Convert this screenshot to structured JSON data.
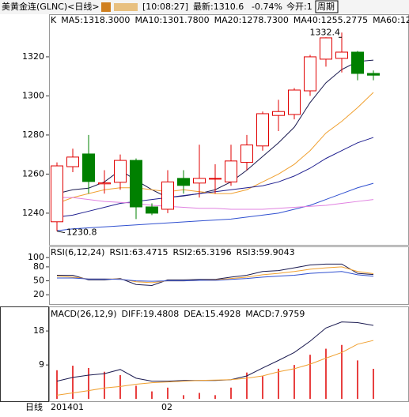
{
  "header": {
    "title": "美黄金连(GLNC)<日线>",
    "time": "[10:08:27]",
    "latest": "最新:1310.6",
    "change": "-0.74%",
    "open": "今开:1",
    "period": "周期",
    "footer": "日线"
  },
  "chart_data": [
    {
      "type": "candlestick",
      "label": "K",
      "categories": [
        "201401",
        null,
        null,
        null,
        null,
        null,
        null,
        "02",
        null,
        null,
        null,
        null,
        null,
        null,
        null,
        null,
        null,
        null,
        null,
        null,
        null
      ],
      "up_color": "#e00000",
      "down_color": "#008000",
      "candles": [
        {
          "open": 1235.6,
          "close": 1264.2,
          "high": 1266,
          "low": 1230.8
        },
        {
          "open": 1263.8,
          "close": 1268.7,
          "high": 1273,
          "low": 1261
        },
        {
          "open": 1270.3,
          "close": 1256.2,
          "high": 1280,
          "low": 1250
        },
        {
          "open": 1255,
          "close": 1255.5,
          "high": 1262,
          "low": 1250
        },
        {
          "open": 1255.8,
          "close": 1267,
          "high": 1270,
          "low": 1252
        },
        {
          "open": 1267,
          "close": 1243.2,
          "high": 1268,
          "low": 1237
        },
        {
          "open": 1243.2,
          "close": 1240,
          "high": 1245,
          "low": 1239
        },
        {
          "open": 1242,
          "close": 1256,
          "high": 1262,
          "low": 1240
        },
        {
          "open": 1257.8,
          "close": 1254.2,
          "high": 1262,
          "low": 1250
        },
        {
          "open": 1255.4,
          "close": 1257.8,
          "high": 1275,
          "low": 1248
        },
        {
          "open": 1257.4,
          "close": 1257.8,
          "high": 1265,
          "low": 1250
        },
        {
          "open": 1256,
          "close": 1266.7,
          "high": 1275,
          "low": 1254
        },
        {
          "open": 1266,
          "close": 1274.9,
          "high": 1280,
          "low": 1262
        },
        {
          "open": 1274.4,
          "close": 1290.9,
          "high": 1292,
          "low": 1272
        },
        {
          "open": 1290,
          "close": 1292,
          "high": 1298,
          "low": 1282
        },
        {
          "open": 1290.5,
          "close": 1303,
          "high": 1304,
          "low": 1288
        },
        {
          "open": 1302.6,
          "close": 1320,
          "high": 1321,
          "low": 1300
        },
        {
          "open": 1318.8,
          "close": 1329.7,
          "high": 1330,
          "low": 1315
        },
        {
          "open": 1319.2,
          "close": 1322.4,
          "high": 1332.4,
          "low": 1312
        },
        {
          "open": 1322.4,
          "close": 1311.5,
          "high": 1323,
          "low": 1308
        },
        {
          "open": 1311.5,
          "close": 1310.6,
          "high": 1313,
          "low": 1308
        }
      ],
      "series": [
        {
          "name": "MA5:1318.3000",
          "color": "#1a1a50",
          "values": [
            1250,
            1252,
            1252.8,
            1256,
            1262,
            1256.8,
            1252,
            1248,
            1248.8,
            1250,
            1252,
            1256,
            1262,
            1269,
            1276,
            1284,
            1296.6,
            1306.7,
            1313.5,
            1317.6,
            1318.3
          ]
        },
        {
          "name": "MA10:1301.7800",
          "color": "#f0a030",
          "values": [
            1245,
            1248,
            1250,
            1252,
            1253,
            1253,
            1252,
            1251,
            1252,
            1251,
            1250,
            1250,
            1252,
            1256,
            1260,
            1265,
            1272,
            1281,
            1287,
            1294,
            1301.78
          ]
        },
        {
          "name": "MA20:1278.7300",
          "color": "#202090",
          "values": [
            1238,
            1239,
            1241,
            1243,
            1245,
            1246,
            1247,
            1248,
            1249,
            1250,
            1251,
            1252,
            1253,
            1254,
            1256,
            1259,
            1263,
            1268,
            1272,
            1276,
            1278.73
          ]
        },
        {
          "name": "MA40:1255.2775",
          "color": "#3050d0",
          "values": [
            1231,
            1232,
            1232.5,
            1233,
            1233.5,
            1234,
            1234.5,
            1235,
            1235.5,
            1236,
            1236.5,
            1237,
            1238,
            1239,
            1240,
            1242,
            1244,
            1247,
            1250,
            1253,
            1255.28
          ]
        },
        {
          "name": "MA60:12",
          "color": "#e080e0",
          "values": [
            1248,
            1248,
            1247,
            1246,
            1245.5,
            1245,
            1244,
            1243.5,
            1243,
            1242.5,
            1242.5,
            1242,
            1242,
            1242,
            1242.5,
            1243,
            1243.5,
            1244,
            1245,
            1246,
            1247
          ]
        }
      ],
      "annotations": [
        {
          "text": "1332.4",
          "index": 18,
          "value": 1332.4
        },
        {
          "text": "1230.8",
          "index": 0,
          "value": 1230.8
        }
      ],
      "ylim": [
        1223.8,
        1341.8
      ],
      "yticks": [
        1240,
        1260,
        1280,
        1300,
        1320
      ]
    },
    {
      "type": "line",
      "title": "RSI(6,12,24)",
      "series": [
        {
          "name": "RSI1:63.4715",
          "color": "#1a1a50",
          "values": [
            62,
            62,
            52,
            52,
            55,
            42,
            40,
            52,
            52,
            53,
            53,
            58,
            62,
            70,
            72,
            78,
            84,
            86,
            86,
            66,
            63.47
          ]
        },
        {
          "name": "RSI2:65.3196",
          "color": "#f0a030",
          "values": [
            60,
            58,
            54,
            54,
            54,
            48,
            46,
            50,
            50,
            51,
            52,
            55,
            58,
            63,
            66,
            70,
            75,
            78,
            80,
            70,
            65.32
          ]
        },
        {
          "name": "RSI3:59.9043",
          "color": "#3050d0",
          "values": [
            56,
            56,
            54,
            54,
            53,
            50,
            49,
            50,
            50,
            51,
            51,
            53,
            55,
            58,
            60,
            62,
            66,
            68,
            70,
            63,
            59.9
          ]
        }
      ],
      "ylim": [
        0,
        124
      ],
      "yticks": [
        100,
        80,
        50,
        20
      ]
    },
    {
      "type": "macd",
      "title": "MACD(26,12,9)",
      "series": [
        {
          "name": "DIFF:19.4808",
          "color": "#1a1a50",
          "values": [
            4.7,
            5.7,
            6.3,
            6.7,
            7.8,
            5.5,
            4.7,
            4.7,
            4.9,
            4.9,
            4.9,
            5.1,
            6.1,
            8.2,
            10.2,
            12.3,
            15.3,
            18.8,
            20.4,
            20.2,
            19.48
          ]
        },
        {
          "name": "DEA:15.4928",
          "color": "#f0a030",
          "values": [
            1,
            1.6,
            2.2,
            2.9,
            3.3,
            3.9,
            4.3,
            4.5,
            4.7,
            4.9,
            5,
            5.1,
            5.5,
            6.1,
            7.2,
            8,
            9.2,
            10.8,
            12.3,
            14.5,
            15.49
          ]
        }
      ],
      "bars": {
        "name": "MACD:7.9759",
        "color": "#e00000",
        "values": [
          7.6,
          8.8,
          8.2,
          7.2,
          6.3,
          3.5,
          2,
          3,
          1,
          1.6,
          1,
          3,
          7,
          6,
          8,
          9,
          11.7,
          13.3,
          14.3,
          10.2,
          7.98
        ]
      },
      "ylim": [
        -0.6,
        24.5
      ],
      "yticks": [
        18,
        9
      ]
    }
  ]
}
